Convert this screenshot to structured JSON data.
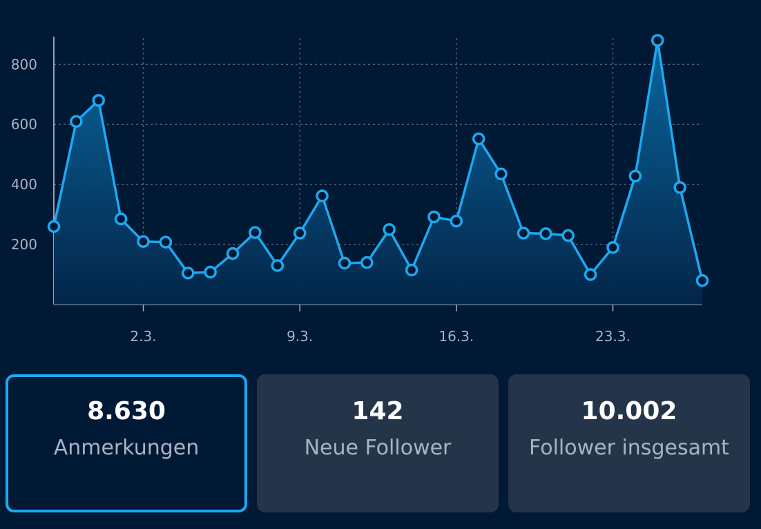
{
  "colors": {
    "background": "#001935",
    "accent": "#1ca9f1",
    "card": "#24354a",
    "muted_text": "#a7b4c4",
    "grid": "#4d6178"
  },
  "chart_data": {
    "type": "area",
    "title": "",
    "xlabel": "",
    "ylabel": "",
    "ylim": [
      0,
      900
    ],
    "grid": true,
    "x_tick_labels": [
      "2.3.",
      "9.3.",
      "16.3.",
      "23.3."
    ],
    "y_tick_labels": [
      "200",
      "400",
      "600",
      "800"
    ],
    "series": [
      {
        "x": [
          1,
          2,
          3,
          4,
          5,
          6,
          7,
          8,
          9,
          10,
          11,
          12,
          13,
          14,
          15,
          16,
          17,
          18,
          19,
          20,
          21,
          22,
          23,
          24,
          25,
          26,
          27,
          28,
          29,
          30
        ],
        "values": [
          260,
          610,
          680,
          285,
          210,
          208,
          105,
          108,
          170,
          240,
          130,
          238,
          362,
          138,
          140,
          250,
          115,
          292,
          278,
          552,
          435,
          238,
          236,
          230,
          100,
          190,
          428,
          880,
          390,
          80
        ]
      }
    ]
  },
  "stats": [
    {
      "value": "8.630",
      "label": "Anmerkungen",
      "selected": true
    },
    {
      "value": "142",
      "label": "Neue Follower",
      "selected": false
    },
    {
      "value": "10.002",
      "label": "Follower insgesamt",
      "selected": false
    }
  ]
}
